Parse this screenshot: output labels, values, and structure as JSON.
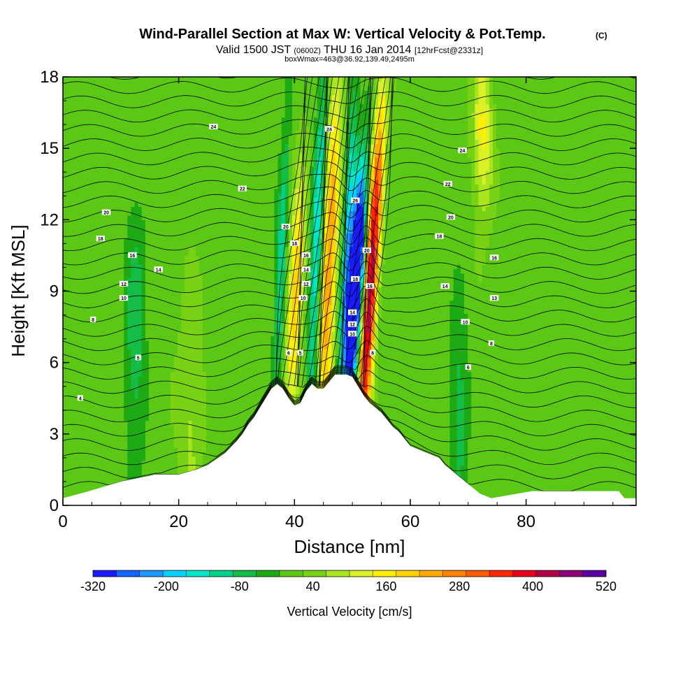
{
  "chart_data": {
    "type": "contour-cross-section",
    "title": "Wind-Parallel Section at Max W: Vertical Velocity & Pot.Temp.",
    "title_suffix": "(C)",
    "subtitle_line1_a": "Valid 1500 JST",
    "subtitle_line1_b": "(0600Z)",
    "subtitle_line1_c": "THU 16 Jan 2014",
    "subtitle_line1_d": "[12hrFcst@2331z]",
    "subtitle_line2": "boxWmax=463@36.92,139.49,2495m",
    "xlabel": "Distance [nm]",
    "ylabel": "Height [Kft MSL]",
    "xlim": [
      0,
      99
    ],
    "ylim": [
      0,
      18
    ],
    "x_ticks": [
      0,
      20,
      40,
      60,
      80
    ],
    "y_ticks": [
      0,
      3,
      6,
      9,
      12,
      15,
      18
    ],
    "terrain_height_kft": [
      [
        0,
        0.3
      ],
      [
        4.5,
        0.6
      ],
      [
        10,
        1.0
      ],
      [
        16,
        1.3
      ],
      [
        20,
        1.3
      ],
      [
        23,
        1.5
      ],
      [
        25,
        1.7
      ],
      [
        28,
        2.2
      ],
      [
        30,
        2.7
      ],
      [
        31,
        3.0
      ],
      [
        32,
        3.4
      ],
      [
        33,
        3.7
      ],
      [
        34,
        4.1
      ],
      [
        35,
        4.5
      ],
      [
        36,
        4.9
      ],
      [
        37,
        5.1
      ],
      [
        38,
        4.9
      ],
      [
        39,
        4.5
      ],
      [
        40,
        4.2
      ],
      [
        41,
        4.3
      ],
      [
        42,
        4.8
      ],
      [
        43,
        5.1
      ],
      [
        44,
        4.9
      ],
      [
        45,
        4.9
      ],
      [
        46,
        5.2
      ],
      [
        47,
        5.5
      ],
      [
        48,
        5.5
      ],
      [
        49,
        5.5
      ],
      [
        50,
        5.4
      ],
      [
        51,
        5.0
      ],
      [
        52,
        4.6
      ],
      [
        53,
        4.3
      ],
      [
        54,
        4.1
      ],
      [
        55,
        3.9
      ],
      [
        56,
        3.6
      ],
      [
        57,
        3.3
      ],
      [
        58,
        3.1
      ],
      [
        59,
        2.8
      ],
      [
        60,
        2.5
      ],
      [
        62,
        2.3
      ],
      [
        63,
        2.2
      ],
      [
        65,
        2.0
      ],
      [
        66,
        1.7
      ],
      [
        67,
        1.5
      ],
      [
        68,
        1.3
      ],
      [
        69,
        1.1
      ],
      [
        70,
        0.9
      ],
      [
        71,
        0.7
      ],
      [
        72,
        0.5
      ],
      [
        73,
        0.4
      ],
      [
        74,
        0.3
      ],
      [
        81,
        0.6
      ],
      [
        96,
        0.6
      ],
      [
        97,
        0.3
      ],
      [
        99,
        0.3
      ]
    ],
    "theta_contour_labels": [
      {
        "x": 3,
        "y": 4.5,
        "label": "4"
      },
      {
        "x": 5.2,
        "y": 7.8,
        "label": "8"
      },
      {
        "x": 13,
        "y": 6.2,
        "label": "5"
      },
      {
        "x": 10.5,
        "y": 8.7,
        "label": "10"
      },
      {
        "x": 10.5,
        "y": 9.3,
        "label": "12"
      },
      {
        "x": 16.5,
        "y": 9.9,
        "label": "14"
      },
      {
        "x": 12,
        "y": 10.5,
        "label": "16"
      },
      {
        "x": 6.5,
        "y": 11.2,
        "label": "18"
      },
      {
        "x": 7.5,
        "y": 12.3,
        "label": "20"
      },
      {
        "x": 26,
        "y": 15.9,
        "label": "24"
      },
      {
        "x": 31,
        "y": 13.3,
        "label": "22"
      },
      {
        "x": 39,
        "y": 6.4,
        "label": "6"
      },
      {
        "x": 41,
        "y": 6.4,
        "label": "5"
      },
      {
        "x": 41.5,
        "y": 8.7,
        "label": "10"
      },
      {
        "x": 42,
        "y": 9.3,
        "label": "12"
      },
      {
        "x": 42,
        "y": 9.9,
        "label": "14"
      },
      {
        "x": 42,
        "y": 10.5,
        "label": "16"
      },
      {
        "x": 40,
        "y": 11.0,
        "label": "18"
      },
      {
        "x": 38.5,
        "y": 11.7,
        "label": "20"
      },
      {
        "x": 46,
        "y": 15.8,
        "label": "24"
      },
      {
        "x": 50.5,
        "y": 12.8,
        "label": "26"
      },
      {
        "x": 50,
        "y": 7.2,
        "label": "10"
      },
      {
        "x": 50,
        "y": 7.6,
        "label": "12"
      },
      {
        "x": 50,
        "y": 8.1,
        "label": "14"
      },
      {
        "x": 50.5,
        "y": 9.5,
        "label": "18"
      },
      {
        "x": 52.5,
        "y": 10.7,
        "label": "20"
      },
      {
        "x": 53,
        "y": 9.2,
        "label": "16"
      },
      {
        "x": 53.5,
        "y": 6.4,
        "label": "8"
      },
      {
        "x": 69,
        "y": 14.9,
        "label": "24"
      },
      {
        "x": 66.5,
        "y": 13.5,
        "label": "22"
      },
      {
        "x": 67,
        "y": 12.1,
        "label": "20"
      },
      {
        "x": 65,
        "y": 11.3,
        "label": "18"
      },
      {
        "x": 74.5,
        "y": 10.4,
        "label": "16"
      },
      {
        "x": 66,
        "y": 9.2,
        "label": "14"
      },
      {
        "x": 74.5,
        "y": 8.7,
        "label": "13"
      },
      {
        "x": 69.5,
        "y": 7.7,
        "label": "10"
      },
      {
        "x": 74,
        "y": 6.8,
        "label": "8"
      },
      {
        "x": 70,
        "y": 5.8,
        "label": "6"
      }
    ],
    "colorbar": {
      "label": "Vertical Velocity [cm/s]",
      "levels": [
        -320,
        -280,
        -240,
        -200,
        -160,
        -120,
        -80,
        -40,
        0,
        40,
        80,
        120,
        160,
        200,
        240,
        280,
        320,
        360,
        400,
        440,
        480,
        520
      ],
      "tick_labels": [
        "-320",
        "-200",
        "-80",
        "40",
        "160",
        "280",
        "400",
        "520"
      ],
      "colors": [
        "#1a1aff",
        "#1464ff",
        "#1e96ff",
        "#00d2ff",
        "#00e6c8",
        "#00d28c",
        "#14be46",
        "#1eaa14",
        "#5ac814",
        "#78d214",
        "#aae61e",
        "#dcf028",
        "#fff000",
        "#ffd200",
        "#ffaa00",
        "#ff8200",
        "#ff5a00",
        "#ff2800",
        "#e6001e",
        "#b40046",
        "#8c0078",
        "#5a00a0"
      ]
    }
  }
}
